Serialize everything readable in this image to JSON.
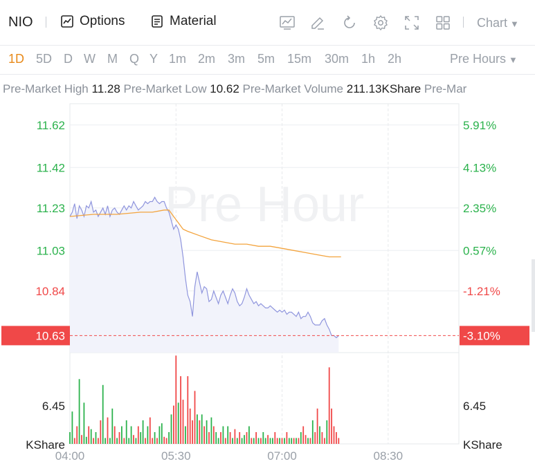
{
  "toolbar": {
    "symbol": "NIO",
    "options_label": "Options",
    "material_label": "Material",
    "icons": [
      "chart-indicator-icon",
      "draw-pen-icon",
      "refresh-icon",
      "settings-gear-icon",
      "fullscreen-icon",
      "grid-layout-icon"
    ],
    "chart_select": "Chart"
  },
  "periods": {
    "items": [
      "1D",
      "5D",
      "D",
      "W",
      "M",
      "Q",
      "Y",
      "1m",
      "2m",
      "3m",
      "5m",
      "15m",
      "30m",
      "1h",
      "2h"
    ],
    "active": "1D",
    "session_select": "Pre Hours"
  },
  "stats": {
    "items": [
      {
        "label": "Pre-Market High",
        "value": "11.28"
      },
      {
        "label": "Pre-Market Low",
        "value": "10.62"
      },
      {
        "label": "Pre-Market Volume",
        "value": "211.13KShare"
      },
      {
        "label": "Pre-Mar",
        "value": ""
      }
    ]
  },
  "colors": {
    "up": "#2bb24c",
    "down": "#f04848",
    "price_line": "#8f95dd",
    "avg_line": "#f3a33c",
    "current_badge": "#f04848",
    "watermark": "#f0f1f3"
  },
  "chart_data": {
    "type": "line",
    "watermark": "Pre Hour",
    "price_axis": {
      "ticks": [
        {
          "value": 11.62,
          "label": "11.62",
          "pct": "5.91%"
        },
        {
          "value": 11.42,
          "label": "11.42",
          "pct": "4.13%"
        },
        {
          "value": 11.23,
          "label": "11.23",
          "pct": "2.35%"
        },
        {
          "value": 11.03,
          "label": "11.03",
          "pct": "0.57%"
        },
        {
          "value": 10.84,
          "label": "10.84",
          "pct": "-1.21%"
        },
        {
          "value": 10.63,
          "label": "10.63",
          "pct": "-3.10%"
        }
      ],
      "ylim": [
        10.55,
        11.72
      ]
    },
    "current": {
      "value": 10.63,
      "label": "10.63",
      "pct": "-3.10%"
    },
    "x_axis": {
      "ticks": [
        {
          "minutes": 0,
          "label": "04:00"
        },
        {
          "minutes": 90,
          "label": "05:30"
        },
        {
          "minutes": 180,
          "label": "07:00"
        },
        {
          "minutes": 270,
          "label": "08:30"
        }
      ],
      "xlim": [
        0,
        330
      ]
    },
    "price_series": [
      [
        0,
        11.19
      ],
      [
        2,
        11.21
      ],
      [
        4,
        11.25
      ],
      [
        6,
        11.18
      ],
      [
        8,
        11.24
      ],
      [
        10,
        11.22
      ],
      [
        12,
        11.19
      ],
      [
        14,
        11.24
      ],
      [
        16,
        11.23
      ],
      [
        18,
        11.26
      ],
      [
        20,
        11.21
      ],
      [
        22,
        11.22
      ],
      [
        24,
        11.19
      ],
      [
        26,
        11.21
      ],
      [
        28,
        11.23
      ],
      [
        30,
        11.2
      ],
      [
        32,
        11.24
      ],
      [
        34,
        11.19
      ],
      [
        36,
        11.22
      ],
      [
        38,
        11.23
      ],
      [
        40,
        11.21
      ],
      [
        42,
        11.2
      ],
      [
        44,
        11.22
      ],
      [
        46,
        11.24
      ],
      [
        48,
        11.22
      ],
      [
        50,
        11.24
      ],
      [
        52,
        11.23
      ],
      [
        54,
        11.26
      ],
      [
        56,
        11.24
      ],
      [
        58,
        11.22
      ],
      [
        60,
        11.23
      ],
      [
        62,
        11.24
      ],
      [
        64,
        11.26
      ],
      [
        66,
        11.25
      ],
      [
        68,
        11.26
      ],
      [
        70,
        11.26
      ],
      [
        72,
        11.28
      ],
      [
        74,
        11.26
      ],
      [
        76,
        11.25
      ],
      [
        78,
        11.26
      ],
      [
        80,
        11.26
      ],
      [
        82,
        11.23
      ],
      [
        84,
        11.21
      ],
      [
        86,
        11.17
      ],
      [
        88,
        11.13
      ],
      [
        90,
        11.15
      ],
      [
        92,
        11.13
      ],
      [
        94,
        11.08
      ],
      [
        96,
        11.0
      ],
      [
        98,
        10.9
      ],
      [
        100,
        10.82
      ],
      [
        102,
        10.79
      ],
      [
        104,
        10.72
      ],
      [
        106,
        10.86
      ],
      [
        108,
        10.93
      ],
      [
        110,
        10.88
      ],
      [
        112,
        10.83
      ],
      [
        114,
        10.86
      ],
      [
        116,
        10.85
      ],
      [
        118,
        10.79
      ],
      [
        120,
        10.8
      ],
      [
        122,
        10.84
      ],
      [
        124,
        10.81
      ],
      [
        126,
        10.78
      ],
      [
        128,
        10.82
      ],
      [
        130,
        10.84
      ],
      [
        132,
        10.81
      ],
      [
        134,
        10.78
      ],
      [
        136,
        10.82
      ],
      [
        138,
        10.85
      ],
      [
        140,
        10.83
      ],
      [
        142,
        10.79
      ],
      [
        144,
        10.77
      ],
      [
        146,
        10.78
      ],
      [
        148,
        10.81
      ],
      [
        150,
        10.85
      ],
      [
        152,
        10.82
      ],
      [
        154,
        10.8
      ],
      [
        156,
        10.78
      ],
      [
        158,
        10.79
      ],
      [
        160,
        10.77
      ],
      [
        162,
        10.78
      ],
      [
        164,
        10.77
      ],
      [
        166,
        10.76
      ],
      [
        168,
        10.76
      ],
      [
        170,
        10.77
      ],
      [
        172,
        10.76
      ],
      [
        174,
        10.75
      ],
      [
        176,
        10.74
      ],
      [
        178,
        10.75
      ],
      [
        180,
        10.74
      ],
      [
        182,
        10.75
      ],
      [
        184,
        10.73
      ],
      [
        186,
        10.74
      ],
      [
        188,
        10.74
      ],
      [
        190,
        10.73
      ],
      [
        192,
        10.72
      ],
      [
        194,
        10.74
      ],
      [
        196,
        10.71
      ],
      [
        198,
        10.72
      ],
      [
        200,
        10.72
      ],
      [
        202,
        10.74
      ],
      [
        204,
        10.72
      ],
      [
        206,
        10.69
      ],
      [
        208,
        10.68
      ],
      [
        210,
        10.68
      ],
      [
        212,
        10.68
      ],
      [
        214,
        10.7
      ],
      [
        216,
        10.71
      ],
      [
        218,
        10.68
      ],
      [
        220,
        10.66
      ],
      [
        222,
        10.63
      ],
      [
        224,
        10.63
      ],
      [
        226,
        10.62
      ],
      [
        228,
        10.63
      ]
    ],
    "avg_series": [
      [
        0,
        11.19
      ],
      [
        20,
        11.2
      ],
      [
        40,
        11.2
      ],
      [
        60,
        11.21
      ],
      [
        70,
        11.21
      ],
      [
        80,
        11.22
      ],
      [
        84,
        11.22
      ],
      [
        88,
        11.19
      ],
      [
        92,
        11.16
      ],
      [
        96,
        11.13
      ],
      [
        100,
        11.12
      ],
      [
        110,
        11.1
      ],
      [
        120,
        11.08
      ],
      [
        130,
        11.07
      ],
      [
        140,
        11.06
      ],
      [
        150,
        11.06
      ],
      [
        160,
        11.05
      ],
      [
        170,
        11.05
      ],
      [
        180,
        11.04
      ],
      [
        190,
        11.03
      ],
      [
        200,
        11.02
      ],
      [
        210,
        11.01
      ],
      [
        220,
        11.0
      ],
      [
        230,
        11.0
      ]
    ],
    "volume_axis": {
      "tick": 6.45,
      "tick_label": "6.45",
      "unit": "KShare",
      "ylim": [
        0,
        15.5
      ]
    },
    "volume_series": [
      [
        0,
        2.0,
        "up"
      ],
      [
        2,
        5.5,
        "up"
      ],
      [
        4,
        1.0,
        "down"
      ],
      [
        6,
        3.0,
        "down"
      ],
      [
        8,
        11.0,
        "up"
      ],
      [
        10,
        1.5,
        "down"
      ],
      [
        12,
        7.0,
        "up"
      ],
      [
        14,
        1.2,
        "up"
      ],
      [
        16,
        3.0,
        "down"
      ],
      [
        18,
        2.5,
        "up"
      ],
      [
        20,
        1.0,
        "down"
      ],
      [
        22,
        2.0,
        "up"
      ],
      [
        24,
        1.0,
        "down"
      ],
      [
        26,
        4.0,
        "down"
      ],
      [
        28,
        10.0,
        "up"
      ],
      [
        30,
        1.0,
        "up"
      ],
      [
        32,
        4.5,
        "down"
      ],
      [
        34,
        1.0,
        "up"
      ],
      [
        36,
        6.0,
        "up"
      ],
      [
        38,
        3.0,
        "down"
      ],
      [
        40,
        1.0,
        "up"
      ],
      [
        42,
        2.0,
        "down"
      ],
      [
        44,
        3.0,
        "up"
      ],
      [
        46,
        1.0,
        "down"
      ],
      [
        48,
        4.0,
        "up"
      ],
      [
        50,
        1.0,
        "up"
      ],
      [
        52,
        3.0,
        "up"
      ],
      [
        54,
        1.5,
        "down"
      ],
      [
        56,
        1.0,
        "up"
      ],
      [
        58,
        3.0,
        "down"
      ],
      [
        60,
        2.0,
        "up"
      ],
      [
        62,
        4.0,
        "up"
      ],
      [
        64,
        1.0,
        "down"
      ],
      [
        66,
        3.0,
        "up"
      ],
      [
        68,
        4.5,
        "down"
      ],
      [
        70,
        1.0,
        "down"
      ],
      [
        72,
        2.0,
        "up"
      ],
      [
        74,
        1.0,
        "down"
      ],
      [
        76,
        3.0,
        "up"
      ],
      [
        78,
        3.5,
        "up"
      ],
      [
        80,
        1.2,
        "down"
      ],
      [
        82,
        1.0,
        "down"
      ],
      [
        84,
        2.0,
        "up"
      ],
      [
        86,
        5.0,
        "up"
      ],
      [
        88,
        6.5,
        "down"
      ],
      [
        90,
        15.0,
        "down"
      ],
      [
        92,
        7.0,
        "up"
      ],
      [
        94,
        11.5,
        "down"
      ],
      [
        96,
        7.5,
        "down"
      ],
      [
        98,
        3.0,
        "up"
      ],
      [
        100,
        11.5,
        "down"
      ],
      [
        102,
        6.0,
        "down"
      ],
      [
        104,
        4.0,
        "down"
      ],
      [
        106,
        9.0,
        "down"
      ],
      [
        108,
        5.0,
        "up"
      ],
      [
        110,
        4.0,
        "down"
      ],
      [
        112,
        5.0,
        "up"
      ],
      [
        114,
        3.0,
        "down"
      ],
      [
        116,
        4.0,
        "up"
      ],
      [
        118,
        2.0,
        "down"
      ],
      [
        120,
        4.5,
        "up"
      ],
      [
        122,
        3.0,
        "down"
      ],
      [
        124,
        2.0,
        "up"
      ],
      [
        126,
        1.0,
        "up"
      ],
      [
        128,
        2.0,
        "down"
      ],
      [
        130,
        3.0,
        "up"
      ],
      [
        132,
        1.0,
        "down"
      ],
      [
        134,
        3.0,
        "up"
      ],
      [
        136,
        2.0,
        "down"
      ],
      [
        138,
        1.0,
        "up"
      ],
      [
        140,
        2.5,
        "down"
      ],
      [
        142,
        1.0,
        "up"
      ],
      [
        144,
        2.0,
        "down"
      ],
      [
        146,
        1.0,
        "up"
      ],
      [
        148,
        1.5,
        "up"
      ],
      [
        150,
        2.0,
        "down"
      ],
      [
        152,
        3.0,
        "up"
      ],
      [
        154,
        1.0,
        "down"
      ],
      [
        156,
        1.0,
        "up"
      ],
      [
        158,
        2.0,
        "down"
      ],
      [
        160,
        1.0,
        "up"
      ],
      [
        162,
        1.0,
        "down"
      ],
      [
        164,
        2.0,
        "up"
      ],
      [
        166,
        1.0,
        "up"
      ],
      [
        168,
        1.5,
        "down"
      ],
      [
        170,
        1.0,
        "up"
      ],
      [
        172,
        1.0,
        "up"
      ],
      [
        174,
        2.0,
        "down"
      ],
      [
        176,
        1.0,
        "down"
      ],
      [
        178,
        1.0,
        "up"
      ],
      [
        180,
        1.0,
        "down"
      ],
      [
        182,
        1.0,
        "up"
      ],
      [
        184,
        2.0,
        "down"
      ],
      [
        186,
        1.0,
        "up"
      ],
      [
        188,
        1.0,
        "up"
      ],
      [
        190,
        1.0,
        "down"
      ],
      [
        192,
        1.0,
        "up"
      ],
      [
        194,
        1.0,
        "down"
      ],
      [
        196,
        2.0,
        "up"
      ],
      [
        198,
        3.0,
        "down"
      ],
      [
        200,
        1.5,
        "down"
      ],
      [
        202,
        1.0,
        "up"
      ],
      [
        204,
        1.0,
        "down"
      ],
      [
        206,
        4.0,
        "up"
      ],
      [
        208,
        2.0,
        "down"
      ],
      [
        210,
        6.0,
        "down"
      ],
      [
        212,
        3.0,
        "up"
      ],
      [
        214,
        2.0,
        "down"
      ],
      [
        216,
        1.0,
        "down"
      ],
      [
        218,
        4.0,
        "up"
      ],
      [
        220,
        13.0,
        "down"
      ],
      [
        222,
        6.0,
        "down"
      ],
      [
        224,
        3.0,
        "down"
      ],
      [
        226,
        2.0,
        "down"
      ],
      [
        228,
        1.0,
        "down"
      ]
    ]
  }
}
